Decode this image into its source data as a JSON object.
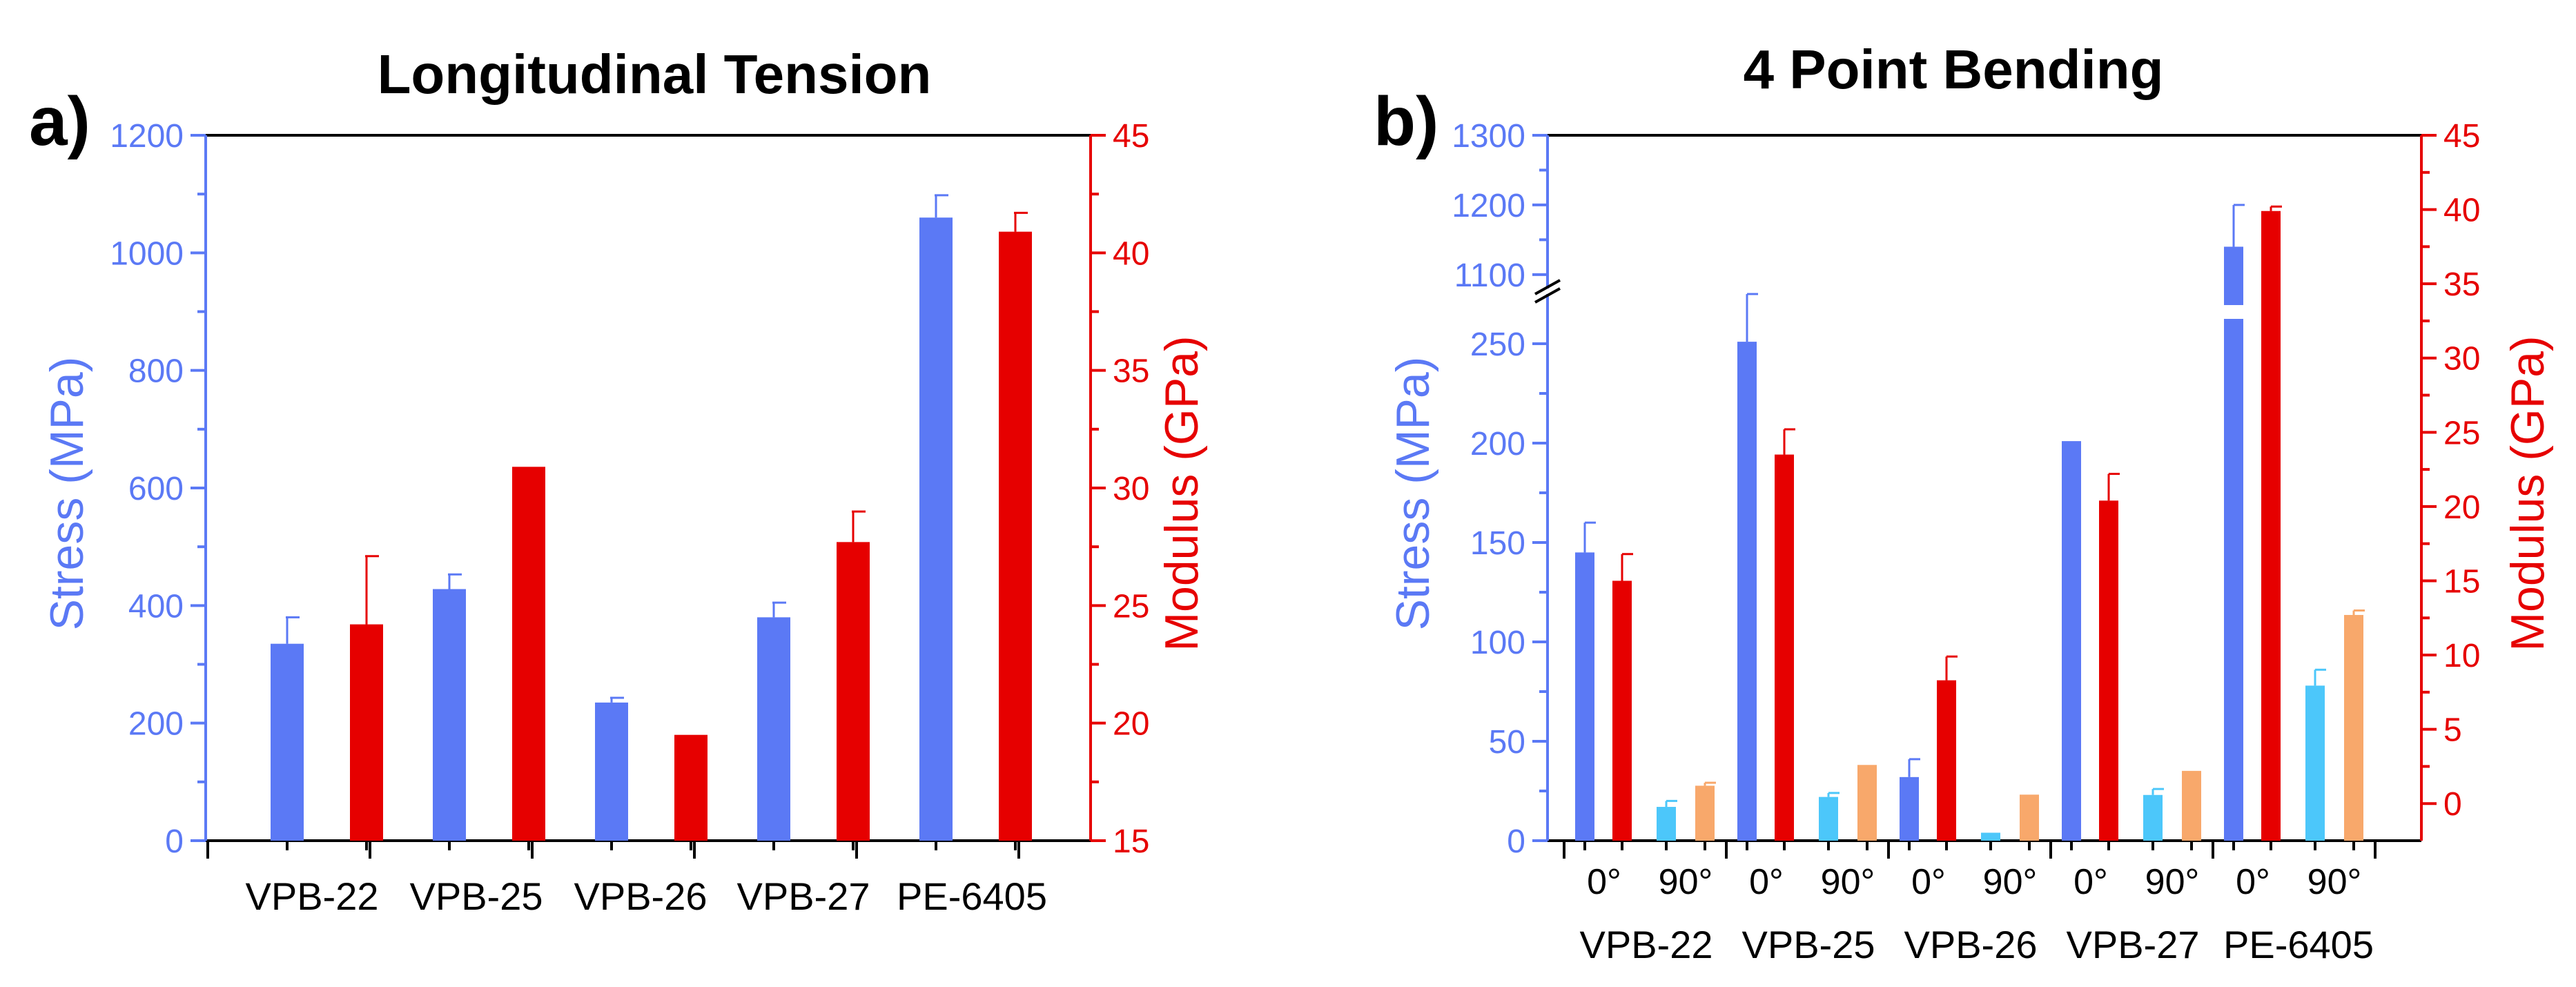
{
  "chart_data": [
    {
      "type": "bar",
      "panel_label": "a)",
      "title": "Longitudinal Tension",
      "categories": [
        "VPB-22",
        "VPB-25",
        "VPB-26",
        "VPB-27",
        "PE-6405"
      ],
      "ylabel": "Stress (MPa)",
      "y2label": "Modulus (GPa)",
      "ylim": [
        0,
        1200
      ],
      "y2lim": [
        15,
        45
      ],
      "yticks": [
        0,
        200,
        400,
        600,
        800,
        1000,
        1200
      ],
      "y2ticks": [
        15,
        20,
        25,
        30,
        35,
        40,
        45
      ],
      "yticks_text": [
        "0",
        "200",
        "400",
        "600",
        "800",
        "1000",
        "1200"
      ],
      "y2ticks_text": [
        "15",
        "20",
        "25",
        "30",
        "35",
        "40",
        "45"
      ],
      "colors": {
        "stress": "#5B79F5",
        "modulus": "#E60000"
      },
      "series": [
        {
          "name": "Stress",
          "axis": "left",
          "values": [
            335,
            428,
            235,
            380,
            1060
          ],
          "errors": [
            45,
            25,
            8,
            25,
            38
          ]
        },
        {
          "name": "Modulus",
          "axis": "right",
          "values": [
            24.2,
            30.9,
            19.5,
            27.7,
            40.9
          ],
          "errors": [
            2.9,
            0,
            0,
            1.3,
            0.8
          ]
        }
      ]
    },
    {
      "type": "bar",
      "panel_label": "b)",
      "title": "4 Point Bending",
      "categories": [
        "VPB-22",
        "VPB-25",
        "VPB-26",
        "VPB-27",
        "PE-6405"
      ],
      "orientations": [
        "0°",
        "90°"
      ],
      "ylabel": "Stress (MPa)",
      "y2label": "Modulus (GPa)",
      "ylim": [
        0,
        1300
      ],
      "y_axis_break": [
        275,
        1080
      ],
      "y2lim": [
        -2.5,
        45
      ],
      "yticks": [
        0,
        50,
        100,
        150,
        200,
        250,
        1100,
        1200,
        1300
      ],
      "y2ticks": [
        0,
        5,
        10,
        15,
        20,
        25,
        30,
        35,
        40,
        45
      ],
      "yticks_text": [
        "0",
        "50",
        "100",
        "150",
        "200",
        "250",
        "1100",
        "1200",
        "1300"
      ],
      "y2ticks_text": [
        "0",
        "5",
        "10",
        "15",
        "20",
        "25",
        "30",
        "35",
        "40",
        "45"
      ],
      "colors": {
        "stress_0": "#5B79F5",
        "modulus_0": "#E60000",
        "stress_90": "#4CC7FA",
        "modulus_90": "#F8A86B"
      },
      "series": [
        {
          "name": "Stress 0°",
          "axis": "left",
          "values": [
            145,
            251,
            32,
            201,
            1140
          ],
          "errors": [
            15,
            29,
            9,
            0,
            60
          ]
        },
        {
          "name": "Modulus 0°",
          "axis": "right",
          "values": [
            15.0,
            23.5,
            8.3,
            20.4,
            39.9
          ],
          "errors": [
            1.8,
            1.7,
            1.6,
            1.8,
            0.3
          ]
        },
        {
          "name": "Stress 90°",
          "axis": "left",
          "values": [
            17,
            22,
            4,
            23,
            78
          ],
          "errors": [
            3,
            2,
            0,
            3,
            8
          ]
        },
        {
          "name": "Modulus 90°",
          "axis": "right",
          "values": [
            1.2,
            2.6,
            0.6,
            2.2,
            12.7
          ],
          "errors": [
            0.2,
            0,
            0,
            0,
            0.3
          ]
        }
      ]
    }
  ]
}
